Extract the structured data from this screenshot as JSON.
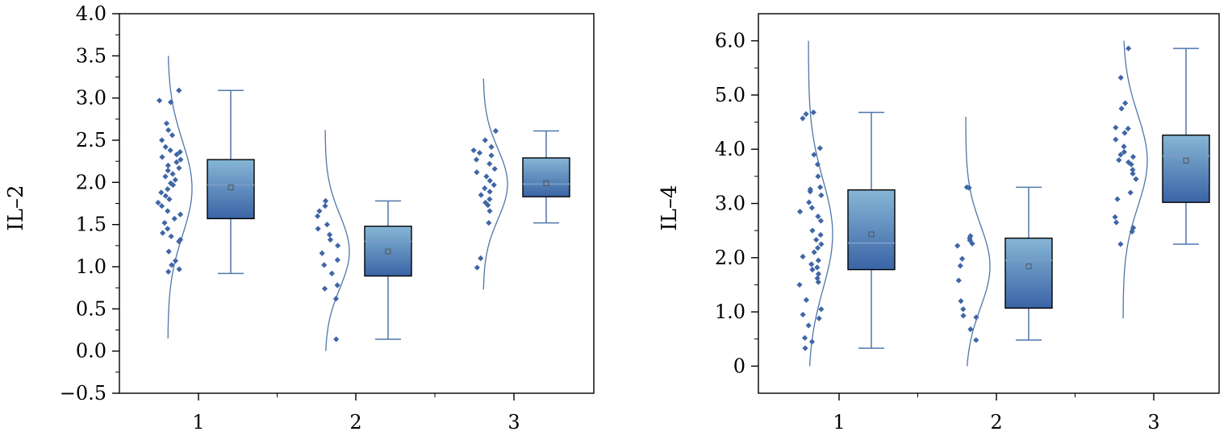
{
  "colors": {
    "box_top": "#86b6d5",
    "box_bottom": "#3a64a6",
    "line": "#4f76ab",
    "point": "#3f66a5",
    "median": "#7a9cc8",
    "mean_marker": "#555555"
  },
  "chart_data": [
    {
      "type": "box",
      "title": "",
      "ylabel": "IL–2",
      "xlabel": "",
      "ylim": [
        -0.5,
        4.0
      ],
      "yticks": [
        -0.5,
        0.0,
        0.5,
        1.0,
        1.5,
        2.0,
        2.5,
        3.0,
        3.5,
        4.0
      ],
      "ytick_labels": [
        "−0.5",
        "0.0",
        "0.5",
        "1.0",
        "1.5",
        "2.0",
        "2.5",
        "3.0",
        "3.5",
        "4.0"
      ],
      "categories": [
        "1",
        "2",
        "3"
      ],
      "grid": false,
      "groups": [
        {
          "category": "1",
          "whisker_low": 0.92,
          "q1": 1.57,
          "median": 1.97,
          "q3": 2.27,
          "whisker_high": 3.09,
          "mean": 1.94,
          "density_range": [
            0.15,
            3.5
          ],
          "density_mode": 1.93,
          "points": [
            3.09,
            2.97,
            2.95,
            2.7,
            2.62,
            2.56,
            2.5,
            2.42,
            2.38,
            2.36,
            2.33,
            2.3,
            2.27,
            2.24,
            2.2,
            2.17,
            2.14,
            2.1,
            2.07,
            2.03,
            1.99,
            1.97,
            1.92,
            1.88,
            1.84,
            1.8,
            1.76,
            1.72,
            1.66,
            1.62,
            1.57,
            1.52,
            1.45,
            1.4,
            1.36,
            1.32,
            1.3,
            1.18,
            1.07,
            1.02,
            0.97,
            0.94
          ]
        },
        {
          "category": "2",
          "whisker_low": 0.14,
          "q1": 0.89,
          "median": 1.3,
          "q3": 1.48,
          "whisker_high": 1.78,
          "mean": 1.18,
          "density_range": [
            0.0,
            2.62
          ],
          "density_mode": 1.18,
          "points": [
            1.78,
            1.72,
            1.66,
            1.6,
            1.5,
            1.45,
            1.38,
            1.32,
            1.25,
            1.16,
            1.08,
            1.02,
            0.92,
            0.78,
            0.74,
            0.62,
            0.14
          ]
        },
        {
          "category": "3",
          "whisker_low": 1.52,
          "q1": 1.83,
          "median": 1.98,
          "q3": 2.29,
          "whisker_high": 2.61,
          "mean": 1.99,
          "density_range": [
            0.73,
            3.23
          ],
          "density_mode": 1.98,
          "points": [
            2.61,
            2.5,
            2.42,
            2.38,
            2.35,
            2.32,
            2.27,
            2.22,
            2.16,
            2.12,
            2.07,
            2.02,
            1.97,
            1.93,
            1.89,
            1.85,
            1.8,
            1.76,
            1.73,
            1.66,
            1.52,
            1.1,
            0.99
          ]
        }
      ]
    },
    {
      "type": "box",
      "title": "",
      "ylabel": "IL–4",
      "xlabel": "",
      "ylim": [
        -0.5,
        6.5
      ],
      "yticks": [
        0.0,
        1.0,
        2.0,
        3.0,
        4.0,
        5.0,
        6.0
      ],
      "ytick_labels": [
        "0",
        "1.0",
        "2.0",
        "3.0",
        "4.0",
        "5.0",
        "6.0"
      ],
      "categories": [
        "1",
        "2",
        "3"
      ],
      "grid": false,
      "groups": [
        {
          "category": "1",
          "whisker_low": 0.33,
          "q1": 1.78,
          "median": 2.27,
          "q3": 3.25,
          "whisker_high": 4.68,
          "mean": 2.43,
          "density_range": [
            0.0,
            6.0
          ],
          "density_mode": 2.43,
          "points": [
            4.68,
            4.65,
            4.57,
            4.02,
            3.9,
            3.72,
            3.5,
            3.3,
            3.26,
            3.22,
            3.15,
            3.02,
            2.92,
            2.85,
            2.76,
            2.68,
            2.5,
            2.42,
            2.33,
            2.25,
            2.18,
            2.1,
            2.02,
            1.95,
            1.88,
            1.82,
            1.78,
            1.7,
            1.62,
            1.55,
            1.5,
            1.22,
            1.05,
            0.95,
            0.88,
            0.75,
            0.52,
            0.45,
            0.33
          ]
        },
        {
          "category": "2",
          "whisker_low": 0.48,
          "q1": 1.07,
          "median": 1.95,
          "q3": 2.36,
          "whisker_high": 3.3,
          "mean": 1.84,
          "density_range": [
            0.0,
            4.6
          ],
          "density_mode": 1.84,
          "points": [
            3.3,
            3.29,
            2.4,
            2.36,
            2.32,
            2.26,
            2.22,
            1.98,
            1.85,
            1.58,
            1.2,
            1.05,
            0.93,
            0.9,
            0.68,
            0.48
          ]
        },
        {
          "category": "3",
          "whisker_low": 2.25,
          "q1": 3.02,
          "median": 3.88,
          "q3": 4.26,
          "whisker_high": 5.86,
          "mean": 3.79,
          "density_range": [
            0.88,
            6.0
          ],
          "density_mode": 3.79,
          "points": [
            5.86,
            5.32,
            4.85,
            4.75,
            4.4,
            4.38,
            4.3,
            4.18,
            4.05,
            3.95,
            3.9,
            3.86,
            3.8,
            3.76,
            3.72,
            3.62,
            3.55,
            3.45,
            3.2,
            3.08,
            2.75,
            2.65,
            2.55,
            2.48,
            2.25
          ]
        }
      ]
    }
  ]
}
